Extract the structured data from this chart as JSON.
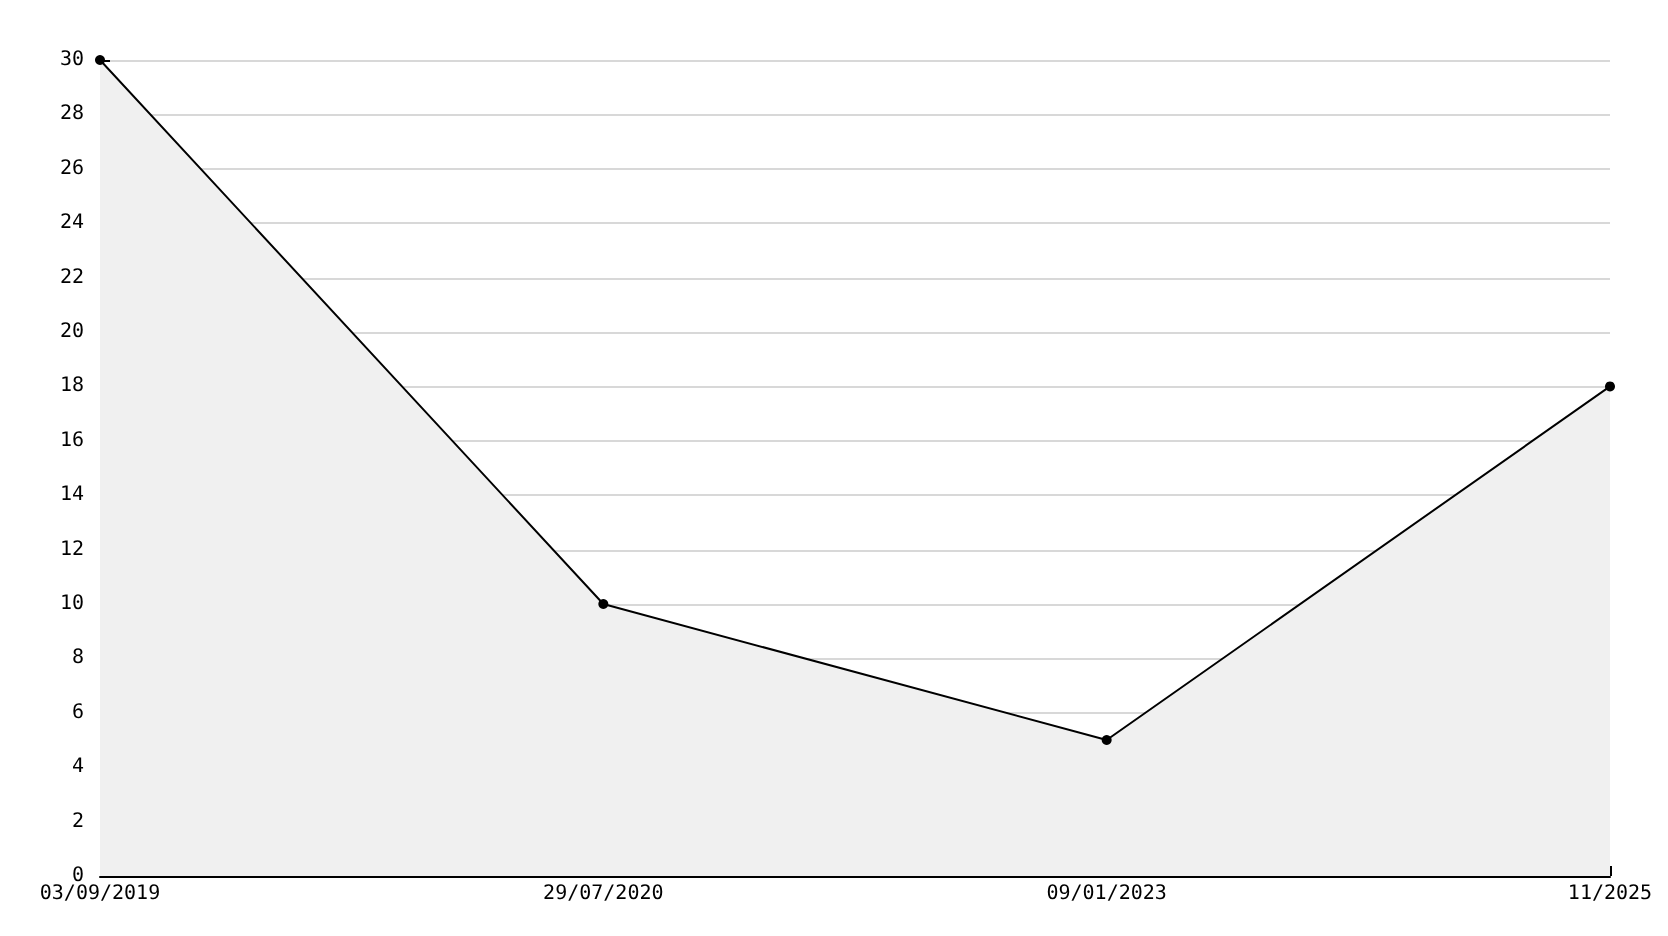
{
  "chart_data": {
    "type": "area",
    "categories": [
      "03/09/2019",
      "29/07/2020",
      "09/01/2023",
      "11/2025"
    ],
    "series": [
      {
        "color": "#000000",
        "values": [
          30,
          10,
          5,
          18
        ]
      }
    ],
    "ylim": [
      0,
      30
    ],
    "yticks": [
      0,
      2,
      4,
      6,
      8,
      10,
      12,
      14,
      16,
      18,
      20,
      22,
      24,
      26,
      28,
      30
    ],
    "grid": "y",
    "marker": "circle",
    "line_style": "solid"
  }
}
